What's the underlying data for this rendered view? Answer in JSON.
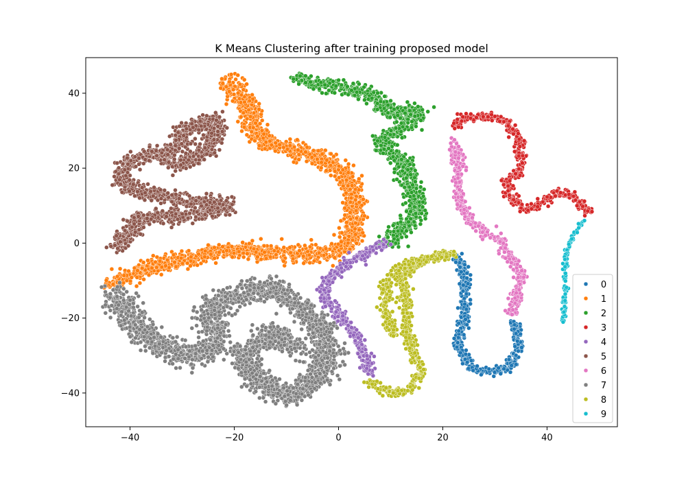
{
  "chart_data": {
    "type": "scatter",
    "title": "K Means Clustering after training proposed model",
    "xlabel": "",
    "ylabel": "",
    "xlim": [
      -48.5,
      53.5
    ],
    "ylim": [
      -49,
      49.5
    ],
    "xticks": [
      -40,
      -20,
      0,
      20,
      40
    ],
    "yticks": [
      -40,
      -20,
      0,
      20,
      40
    ],
    "grid": false,
    "legend": {
      "placement": "bottom-right",
      "labels": [
        "0",
        "1",
        "2",
        "3",
        "4",
        "5",
        "6",
        "7",
        "8",
        "9"
      ]
    },
    "series": [
      {
        "name": "0",
        "color": "#1f77b4",
        "path": [
          [
            22.5,
            -3
          ],
          [
            24,
            -8
          ],
          [
            24.5,
            -15
          ],
          [
            24,
            -20
          ],
          [
            23,
            -27
          ],
          [
            25,
            -33
          ],
          [
            29,
            -34.5
          ],
          [
            33,
            -33
          ],
          [
            34.5,
            -27
          ],
          [
            34,
            -21
          ]
        ],
        "spread": 0.9
      },
      {
        "name": "1",
        "color": "#ff7f0e",
        "path": [
          [
            -43.5,
            -11
          ],
          [
            -37,
            -7
          ],
          [
            -30,
            -4.5
          ],
          [
            -22,
            -2
          ],
          [
            -15,
            -2
          ],
          [
            -9,
            -3
          ],
          [
            -3,
            -3
          ],
          [
            2,
            -1
          ],
          [
            3,
            6
          ],
          [
            3,
            13
          ],
          [
            1,
            19
          ],
          [
            -4,
            23
          ],
          [
            -9,
            25
          ],
          [
            -14,
            27
          ],
          [
            -17,
            31
          ],
          [
            -17,
            36
          ],
          [
            -20,
            41
          ],
          [
            -21,
            44
          ]
        ],
        "spread": 1.8
      },
      {
        "name": "2",
        "color": "#2ca02c",
        "path": [
          [
            -8,
            44
          ],
          [
            -3,
            42
          ],
          [
            2,
            41.5
          ],
          [
            6,
            39
          ],
          [
            8,
            37
          ],
          [
            11,
            35
          ],
          [
            14,
            35
          ],
          [
            16,
            35
          ],
          [
            12,
            31
          ],
          [
            8,
            27
          ],
          [
            12,
            22
          ],
          [
            14,
            15
          ],
          [
            15,
            8
          ],
          [
            11,
            2
          ],
          [
            9,
            0
          ]
        ],
        "spread": 1.6
      },
      {
        "name": "3",
        "color": "#d62728",
        "path": [
          [
            22,
            31
          ],
          [
            24,
            33.5
          ],
          [
            28,
            34
          ],
          [
            31,
            33
          ],
          [
            34,
            30
          ],
          [
            35,
            24
          ],
          [
            35,
            19
          ],
          [
            32,
            17
          ],
          [
            33,
            12
          ],
          [
            36,
            9
          ],
          [
            39,
            11
          ],
          [
            42,
            13.5
          ],
          [
            45,
            12.5
          ],
          [
            48,
            8
          ]
        ],
        "spread": 0.9
      },
      {
        "name": "4",
        "color": "#9467bd",
        "path": [
          [
            9,
            0
          ],
          [
            5,
            -3
          ],
          [
            1,
            -6
          ],
          [
            -1.5,
            -9
          ],
          [
            -3,
            -14
          ],
          [
            0,
            -19
          ],
          [
            3,
            -24
          ],
          [
            5,
            -29
          ],
          [
            6,
            -35
          ]
        ],
        "spread": 1.0
      },
      {
        "name": "5",
        "color": "#8c564b",
        "path": [
          [
            -43,
            -1
          ],
          [
            -40,
            3
          ],
          [
            -38,
            7
          ],
          [
            -32,
            7
          ],
          [
            -26,
            8
          ],
          [
            -21,
            10
          ],
          [
            -32,
            12
          ],
          [
            -39,
            14
          ],
          [
            -42,
            17
          ],
          [
            -40,
            22
          ],
          [
            -36,
            24
          ],
          [
            -30,
            21
          ],
          [
            -26,
            24
          ],
          [
            -24,
            28
          ],
          [
            -23,
            33
          ],
          [
            -26,
            32
          ],
          [
            -30,
            30
          ],
          [
            -30,
            27
          ],
          [
            -33,
            24
          ]
        ],
        "spread": 1.6
      },
      {
        "name": "6",
        "color": "#e377c2",
        "path": [
          [
            22,
            27
          ],
          [
            23,
            20
          ],
          [
            23,
            12
          ],
          [
            25,
            6
          ],
          [
            28,
            3
          ],
          [
            31,
            1
          ],
          [
            33,
            -4
          ],
          [
            35,
            -9
          ],
          [
            34,
            -15
          ],
          [
            33,
            -19
          ]
        ],
        "spread": 0.9
      },
      {
        "name": "7",
        "color": "#7f7f7f",
        "path": [
          [
            -43,
            -13
          ],
          [
            -40,
            -20
          ],
          [
            -36,
            -26
          ],
          [
            -30,
            -30
          ],
          [
            -26,
            -30
          ],
          [
            -23,
            -26
          ],
          [
            -25,
            -18
          ],
          [
            -20,
            -14
          ],
          [
            -13,
            -12
          ],
          [
            -7,
            -17
          ],
          [
            -3,
            -24
          ],
          [
            -2,
            -30
          ],
          [
            -4,
            -36
          ],
          [
            -10,
            -41
          ],
          [
            -15,
            -37
          ],
          [
            -19,
            -30
          ],
          [
            -13,
            -24
          ],
          [
            -8,
            -28
          ]
        ],
        "spread": 2.3
      },
      {
        "name": "8",
        "color": "#bcbd22",
        "path": [
          [
            6,
            -37
          ],
          [
            10,
            -40
          ],
          [
            14,
            -39
          ],
          [
            16,
            -34
          ],
          [
            14,
            -28
          ],
          [
            13,
            -22
          ],
          [
            13,
            -16
          ],
          [
            12,
            -10
          ],
          [
            15,
            -5
          ],
          [
            20,
            -3
          ],
          [
            22,
            -3
          ],
          [
            12,
            -6
          ],
          [
            9,
            -12
          ],
          [
            9,
            -19
          ],
          [
            11,
            -25
          ]
        ],
        "spread": 0.9
      },
      {
        "name": "9",
        "color": "#17becf",
        "path": [
          [
            47,
            6
          ],
          [
            45,
            2
          ],
          [
            43.5,
            -3
          ],
          [
            43.5,
            -8
          ],
          [
            43.5,
            -13
          ],
          [
            43,
            -21
          ]
        ],
        "spread": 0.35
      }
    ]
  }
}
